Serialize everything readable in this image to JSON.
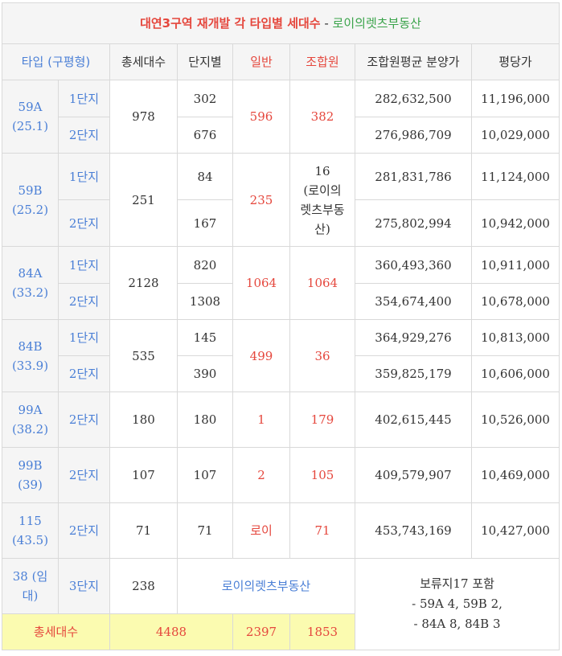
{
  "title": {
    "main": "대연3구역 재개발 각 타입별 세대수",
    "sep": " - ",
    "brand": "로이의렛츠부동산"
  },
  "headers": [
    "타입 (구평형)",
    "총세대수",
    "단지별",
    "일반",
    "조합원",
    "조합원평균 분양가",
    "평당가"
  ],
  "rows": {
    "t59a": {
      "type_line1": "59A",
      "type_line2": "(25.1)",
      "total": "978",
      "general": "596",
      "member": "382",
      "c1": {
        "complex": "1단지",
        "count": "302",
        "price": "282,632,500",
        "ppp": "11,196,000"
      },
      "c2": {
        "complex": "2단지",
        "count": "676",
        "price": "276,986,709",
        "ppp": "10,029,000"
      }
    },
    "t59b": {
      "type_line1": "59B",
      "type_line2": "(25.2)",
      "total": "251",
      "general": "235",
      "member": "16",
      "member_note": [
        "(로이의",
        "렛츠부동",
        "산)"
      ],
      "c1": {
        "complex": "1단지",
        "count": "84",
        "price": "281,831,786",
        "ppp": "11,124,000"
      },
      "c2": {
        "complex": "2단지",
        "count": "167",
        "price": "275,802,994",
        "ppp": "10,942,000"
      }
    },
    "t84a": {
      "type_line1": "84A",
      "type_line2": "(33.2)",
      "total": "2128",
      "general": "1064",
      "member": "1064",
      "c1": {
        "complex": "1단지",
        "count": "820",
        "price": "360,493,360",
        "ppp": "10,911,000"
      },
      "c2": {
        "complex": "2단지",
        "count": "1308",
        "price": "354,674,400",
        "ppp": "10,678,000"
      }
    },
    "t84b": {
      "type_line1": "84B",
      "type_line2": "(33.9)",
      "total": "535",
      "general": "499",
      "member": "36",
      "c1": {
        "complex": "1단지",
        "count": "145",
        "price": "364,929,276",
        "ppp": "10,813,000"
      },
      "c2": {
        "complex": "2단지",
        "count": "390",
        "price": "359,825,179",
        "ppp": "10,606,000"
      }
    },
    "t99a": {
      "type_line1": "99A",
      "type_line2": "(38.2)",
      "complex": "2단지",
      "total": "180",
      "count": "180",
      "general": "1",
      "member": "179",
      "price": "402,615,445",
      "ppp": "10,526,000"
    },
    "t99b": {
      "type_line1": "99B",
      "type_line2": "(39)",
      "complex": "2단지",
      "total": "107",
      "count": "107",
      "general": "2",
      "member": "105",
      "price": "409,579,907",
      "ppp": "10,469,000"
    },
    "t115": {
      "type_line1": "115",
      "type_line2": "(43.5)",
      "complex": "2단지",
      "total": "71",
      "count": "71",
      "general": "로이",
      "member": "71",
      "price": "453,743,169",
      "ppp": "10,427,000"
    },
    "t38": {
      "type_line1": "38 (임",
      "type_line2": "대)",
      "complex": "3단지",
      "total": "238",
      "merged": "로이의렛츠부동산"
    }
  },
  "totals": {
    "label": "총세대수",
    "total": "4488",
    "general": "2397",
    "member": "1853"
  },
  "note": {
    "line1": "보류지17 포함",
    "line2": "- 59A 4, 59B 2,",
    "line3": "- 84A 8, 84B 3"
  },
  "colors": {
    "red": "#e5473d",
    "blue": "#4a7fd6",
    "green": "#3aa34a",
    "header_bg": "#f5f5f5",
    "total_bg": "#fbfbb0"
  }
}
